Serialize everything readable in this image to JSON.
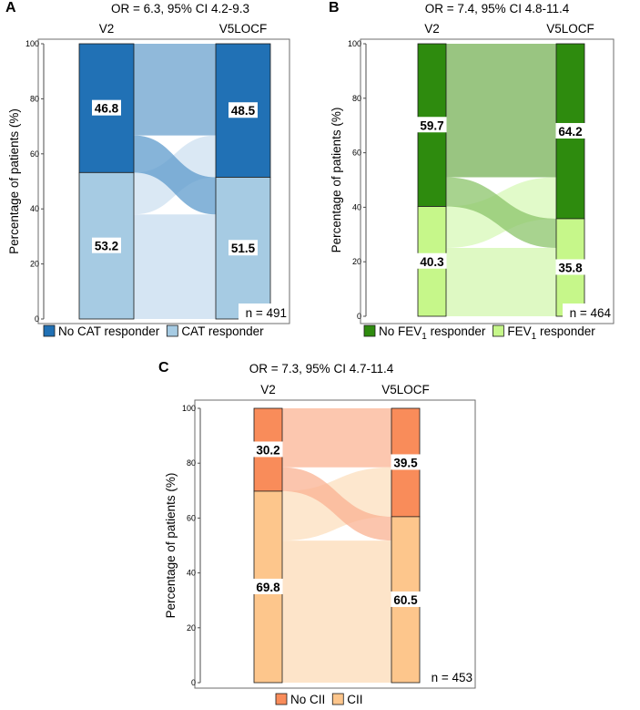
{
  "chart_data": [
    {
      "type": "alluvial",
      "panel": "A",
      "title": "OR = 6.3, 95% CI 4.2-9.3",
      "columns": [
        "V2",
        "V5LOCF"
      ],
      "ylabel": "Percentage of patients (%)",
      "ylim": [
        0,
        100
      ],
      "yticks": [
        0,
        20,
        40,
        60,
        80,
        100
      ],
      "n_label": "n = 491",
      "categories": [
        "No CAT responder",
        "CAT responder"
      ],
      "colors": {
        "top_bar": "#2171b5",
        "bottom_bar": "#a6cbe3",
        "top_flow": "#8ab5d8",
        "bottom_flow": "#d3e4f2",
        "cross_flow": "#5e9bcc"
      },
      "v2": {
        "top": 46.8,
        "bottom": 53.2,
        "top_label": "46.8",
        "bottom_label": "53.2"
      },
      "v5": {
        "top": 48.5,
        "bottom": 51.5,
        "top_label": "48.5",
        "bottom_label": "51.5"
      },
      "flows": {
        "top_to_top": 33.3,
        "top_to_bottom": 13.5,
        "bottom_to_top": 15.2,
        "bottom_to_bottom": 38.0
      },
      "legend": [
        {
          "label": "No CAT responder",
          "color": "#2171b5"
        },
        {
          "label": "CAT responder",
          "color": "#a6cbe3"
        }
      ]
    },
    {
      "type": "alluvial",
      "panel": "B",
      "title": "OR = 7.4, 95% CI 4.8-11.4",
      "columns": [
        "V2",
        "V5LOCF"
      ],
      "ylabel": "Percentage of patients (%)",
      "ylim": [
        0,
        100
      ],
      "yticks": [
        0,
        20,
        40,
        60,
        80,
        100
      ],
      "n_label": "n = 464",
      "categories": [
        "No FEV1 responder",
        "FEV1 responder"
      ],
      "colors": {
        "top_bar": "#2e8b0e",
        "bottom_bar": "#c6f78a",
        "top_flow": "#93c27a",
        "bottom_flow": "#dcf9c0",
        "cross_flow": "#8bc46a"
      },
      "v2": {
        "top": 59.7,
        "bottom": 40.3,
        "top_label": "59.7",
        "bottom_label": "40.3"
      },
      "v5": {
        "top": 64.2,
        "bottom": 35.8,
        "top_label": "64.2",
        "bottom_label": "35.8"
      },
      "flows": {
        "top_to_top": 49.0,
        "top_to_bottom": 10.7,
        "bottom_to_top": 15.2,
        "bottom_to_bottom": 25.1
      },
      "legend": [
        {
          "label": "No FEV",
          "sub": "1",
          "suffix": " responder",
          "color": "#2e8b0e"
        },
        {
          "label": "FEV",
          "sub": "1",
          "suffix": " responder",
          "color": "#c6f78a"
        }
      ]
    },
    {
      "type": "alluvial",
      "panel": "C",
      "title": "OR = 7.3, 95% CI 4.7-11.4",
      "columns": [
        "V2",
        "V5LOCF"
      ],
      "ylabel": "Percentage of patients (%)",
      "ylim": [
        0,
        100
      ],
      "yticks": [
        0,
        20,
        40,
        60,
        80,
        100
      ],
      "n_label": "n = 453",
      "categories": [
        "No CII",
        "CII"
      ],
      "colors": {
        "top_bar": "#f98c5a",
        "bottom_bar": "#fdc68c",
        "top_flow": "#fcc4ab",
        "bottom_flow": "#fde3c6",
        "cross_flow": "#f9b192"
      },
      "v2": {
        "top": 30.2,
        "bottom": 69.8,
        "top_label": "30.2",
        "bottom_label": "69.8"
      },
      "v5": {
        "top": 39.5,
        "bottom": 60.5,
        "top_label": "39.5",
        "bottom_label": "60.5"
      },
      "flows": {
        "top_to_top": 21.5,
        "top_to_bottom": 8.7,
        "bottom_to_top": 18.0,
        "bottom_to_bottom": 51.8
      },
      "legend": [
        {
          "label": "No CII",
          "color": "#f98c5a"
        },
        {
          "label": "CII",
          "color": "#fdc68c"
        }
      ]
    }
  ]
}
